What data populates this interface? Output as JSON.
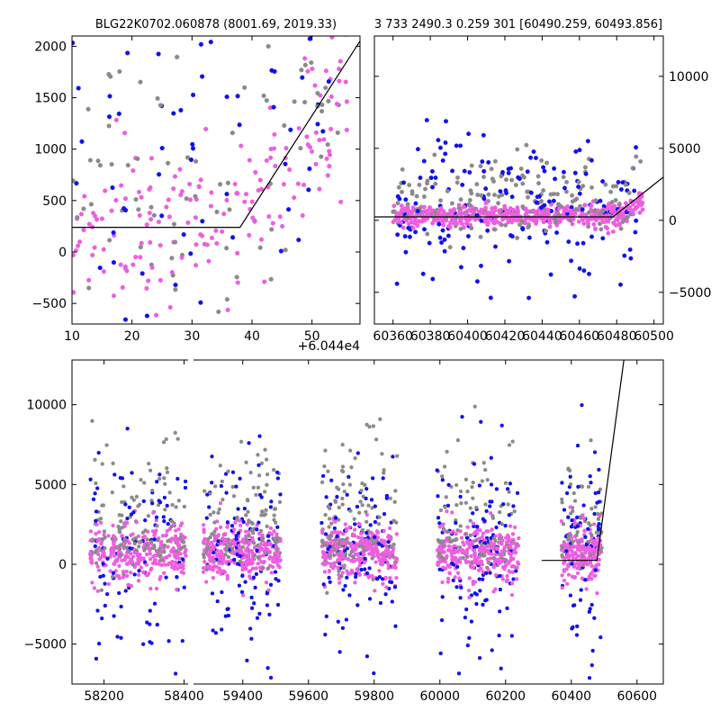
{
  "figure_title_left": "BLG22K0702.060878 (8001.69, 2019.33)",
  "figure_title_right": "3 733 2490.3 0.259 301 [60490.259, 60493.856]",
  "colors": {
    "blue": "#1010ee",
    "gray": "#8a8a8a",
    "magenta": "#ee5ee0",
    "model": "#000000"
  },
  "chart_data": [
    {
      "id": "top-left",
      "type": "scatter",
      "title": "BLG22K0702.060878 (8001.69, 2019.33)",
      "xlim": [
        10,
        58
      ],
      "ylim": [
        -700,
        2100
      ],
      "xticks": [
        10,
        20,
        30,
        40,
        50
      ],
      "xtick_labels": [
        "10",
        "20",
        "30",
        "40",
        "50"
      ],
      "yticks": [
        -500,
        0,
        500,
        1000,
        1500,
        2000
      ],
      "ytick_labels": [
        "−500",
        "0",
        "500",
        "1000",
        "1500",
        "2000"
      ],
      "x_offset_label": "+6.044e4",
      "model": {
        "x": [
          10,
          38,
          58
        ],
        "y": [
          240,
          240,
          2050
        ]
      },
      "grid": false
    },
    {
      "id": "top-right",
      "type": "scatter",
      "title": "3 733 2490.3 0.259 301 [60490.259, 60493.856]",
      "xlim": [
        60350,
        60505
      ],
      "ylim": [
        -7200,
        12800
      ],
      "xticks": [
        60360,
        60380,
        60400,
        60420,
        60440,
        60460,
        60480,
        60500
      ],
      "xtick_labels": [
        "60360",
        "60380",
        "60400",
        "60420",
        "60440",
        "60460",
        "60480",
        "60500"
      ],
      "yticks": [
        -5000,
        0,
        5000,
        10000
      ],
      "ytick_labels": [
        "−5000",
        "0",
        "5000",
        "10000"
      ],
      "y_axis_side": "right",
      "model": {
        "x": [
          60350,
          60478,
          60505
        ],
        "y": [
          240,
          240,
          3000
        ]
      },
      "grid": false
    },
    {
      "id": "bottom",
      "type": "scatter",
      "xlim_segments": [
        [
          58120,
          58410
        ],
        [
          59250,
          60680
        ]
      ],
      "ylim": [
        -7500,
        12800
      ],
      "xticks": [
        58200,
        58400,
        59400,
        59600,
        59800,
        60000,
        60200,
        60400,
        60600
      ],
      "xtick_labels": [
        "58200",
        "58400",
        "59400",
        "59600",
        "59800",
        "60000",
        "60200",
        "60400",
        "60600"
      ],
      "yticks": [
        -5000,
        0,
        5000,
        10000
      ],
      "ytick_labels": [
        "−5000",
        "0",
        "5000",
        "10000"
      ],
      "seasons": [
        {
          "start": 58165,
          "end": 58405
        },
        {
          "start": 59280,
          "end": 59515
        },
        {
          "start": 59640,
          "end": 59870
        },
        {
          "start": 59990,
          "end": 60240
        },
        {
          "start": 60370,
          "end": 60493
        }
      ],
      "model": {
        "x": [
          60310,
          60478,
          60560
        ],
        "y": [
          240,
          240,
          12800
        ]
      },
      "grid": false
    }
  ]
}
